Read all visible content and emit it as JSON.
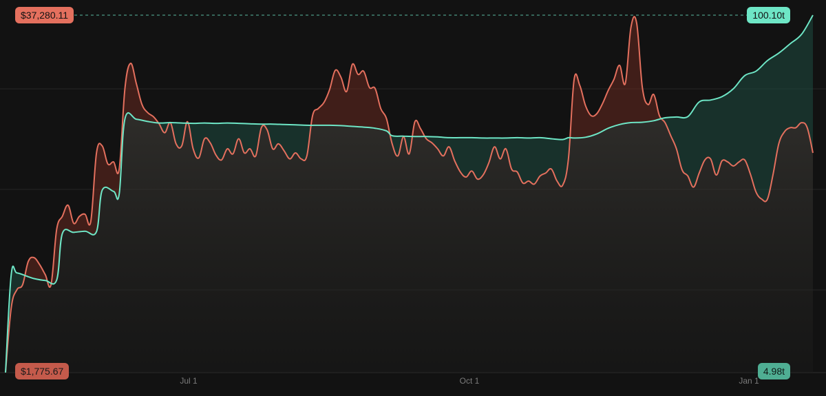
{
  "colors": {
    "background": "#121212",
    "price_line": "#e4705e",
    "supply_line": "#6ee6c6",
    "gridline": "#262626"
  },
  "labels": {
    "price_max": "$37,280.11",
    "price_min": "$1,775.67",
    "supply_max": "100.10t",
    "supply_min": "4.98t"
  },
  "x_ticks": [
    "Jul 1",
    "Oct 1",
    "Jan 1"
  ],
  "chart_data": {
    "type": "line",
    "title": "",
    "xlabel": "",
    "ylabel": "",
    "grid": true,
    "price_range": [
      1775.67,
      37280.11
    ],
    "supply_range": [
      4.98,
      100.1
    ],
    "series": [
      {
        "color": "#e4705e",
        "points": [
          [
            "2024-04-08",
            1776
          ],
          [
            "2024-04-10",
            8200
          ],
          [
            "2024-04-12",
            10000
          ],
          [
            "2024-04-14",
            10500
          ],
          [
            "2024-04-16",
            12800
          ],
          [
            "2024-04-18",
            13200
          ],
          [
            "2024-04-20",
            12500
          ],
          [
            "2024-04-22",
            11500
          ],
          [
            "2024-04-24",
            10500
          ],
          [
            "2024-04-26",
            16000
          ],
          [
            "2024-04-28",
            17300
          ],
          [
            "2024-04-30",
            18400
          ],
          [
            "2024-05-02",
            16600
          ],
          [
            "2024-05-04",
            17300
          ],
          [
            "2024-05-06",
            17500
          ],
          [
            "2024-05-08",
            16800
          ],
          [
            "2024-05-10",
            23600
          ],
          [
            "2024-05-12",
            24300
          ],
          [
            "2024-05-14",
            22500
          ],
          [
            "2024-05-16",
            22700
          ],
          [
            "2024-05-18",
            22000
          ],
          [
            "2024-05-20",
            30000
          ],
          [
            "2024-05-22",
            32500
          ],
          [
            "2024-05-24",
            30500
          ],
          [
            "2024-05-26",
            28400
          ],
          [
            "2024-05-28",
            27600
          ],
          [
            "2024-05-30",
            27200
          ],
          [
            "2024-06-01",
            26500
          ],
          [
            "2024-06-03",
            25600
          ],
          [
            "2024-06-05",
            26600
          ],
          [
            "2024-06-07",
            24500
          ],
          [
            "2024-06-09",
            24300
          ],
          [
            "2024-06-11",
            26700
          ],
          [
            "2024-06-13",
            24000
          ],
          [
            "2024-06-15",
            23100
          ],
          [
            "2024-06-17",
            25000
          ],
          [
            "2024-06-19",
            24600
          ],
          [
            "2024-06-21",
            23400
          ],
          [
            "2024-06-23",
            22900
          ],
          [
            "2024-06-25",
            24000
          ],
          [
            "2024-06-27",
            23500
          ],
          [
            "2024-06-29",
            25000
          ],
          [
            "2024-07-01",
            23600
          ],
          [
            "2024-07-03",
            24000
          ],
          [
            "2024-07-05",
            23300
          ],
          [
            "2024-07-07",
            26100
          ],
          [
            "2024-07-09",
            25900
          ],
          [
            "2024-07-11",
            24000
          ],
          [
            "2024-07-13",
            24500
          ],
          [
            "2024-07-15",
            23800
          ],
          [
            "2024-07-17",
            23000
          ],
          [
            "2024-07-19",
            23600
          ],
          [
            "2024-07-21",
            23000
          ],
          [
            "2024-07-23",
            23300
          ],
          [
            "2024-07-25",
            27300
          ],
          [
            "2024-07-27",
            28000
          ],
          [
            "2024-07-29",
            28600
          ],
          [
            "2024-07-31",
            29900
          ],
          [
            "2024-08-02",
            31800
          ],
          [
            "2024-08-04",
            31100
          ],
          [
            "2024-08-06",
            29700
          ],
          [
            "2024-08-08",
            32400
          ],
          [
            "2024-08-10",
            31400
          ],
          [
            "2024-08-12",
            31700
          ],
          [
            "2024-08-14",
            30100
          ],
          [
            "2024-08-16",
            30000
          ],
          [
            "2024-08-18",
            28000
          ],
          [
            "2024-08-20",
            27000
          ],
          [
            "2024-08-22",
            24500
          ],
          [
            "2024-08-24",
            23300
          ],
          [
            "2024-08-26",
            25200
          ],
          [
            "2024-08-28",
            23500
          ],
          [
            "2024-08-30",
            26700
          ],
          [
            "2024-09-01",
            26000
          ],
          [
            "2024-09-03",
            25000
          ],
          [
            "2024-09-05",
            24600
          ],
          [
            "2024-09-07",
            24000
          ],
          [
            "2024-09-09",
            23300
          ],
          [
            "2024-09-11",
            24200
          ],
          [
            "2024-09-13",
            22800
          ],
          [
            "2024-09-15",
            21700
          ],
          [
            "2024-09-17",
            21200
          ],
          [
            "2024-09-19",
            21800
          ],
          [
            "2024-09-21",
            21000
          ],
          [
            "2024-09-23",
            21400
          ],
          [
            "2024-09-25",
            22600
          ],
          [
            "2024-09-27",
            24200
          ],
          [
            "2024-09-29",
            23000
          ],
          [
            "2024-10-01",
            24000
          ],
          [
            "2024-10-03",
            22000
          ],
          [
            "2024-10-05",
            21700
          ],
          [
            "2024-10-07",
            20600
          ],
          [
            "2024-10-09",
            20800
          ],
          [
            "2024-10-11",
            20500
          ],
          [
            "2024-10-13",
            21300
          ],
          [
            "2024-10-15",
            21600
          ],
          [
            "2024-10-17",
            22000
          ],
          [
            "2024-10-19",
            20800
          ],
          [
            "2024-10-21",
            20400
          ],
          [
            "2024-10-23",
            23000
          ],
          [
            "2024-10-25",
            30900
          ],
          [
            "2024-10-27",
            30300
          ],
          [
            "2024-10-29",
            28300
          ],
          [
            "2024-10-31",
            27300
          ],
          [
            "2024-11-02",
            27500
          ],
          [
            "2024-11-04",
            28500
          ],
          [
            "2024-11-06",
            29800
          ],
          [
            "2024-11-08",
            30900
          ],
          [
            "2024-11-10",
            32300
          ],
          [
            "2024-11-12",
            30500
          ],
          [
            "2024-11-14",
            36100
          ],
          [
            "2024-11-16",
            36500
          ],
          [
            "2024-11-18",
            30100
          ],
          [
            "2024-11-20",
            28400
          ],
          [
            "2024-11-22",
            29400
          ],
          [
            "2024-11-24",
            27300
          ],
          [
            "2024-11-26",
            26600
          ],
          [
            "2024-11-28",
            25300
          ],
          [
            "2024-11-30",
            24000
          ],
          [
            "2024-12-02",
            21900
          ],
          [
            "2024-12-04",
            21300
          ],
          [
            "2024-12-06",
            20200
          ],
          [
            "2024-12-08",
            21600
          ],
          [
            "2024-12-10",
            22900
          ],
          [
            "2024-12-12",
            23000
          ],
          [
            "2024-12-14",
            21400
          ],
          [
            "2024-12-16",
            22800
          ],
          [
            "2024-12-18",
            22700
          ],
          [
            "2024-12-20",
            22300
          ],
          [
            "2024-12-22",
            22700
          ],
          [
            "2024-12-24",
            22900
          ],
          [
            "2024-12-26",
            21500
          ],
          [
            "2024-12-28",
            19700
          ],
          [
            "2024-12-30",
            19000
          ],
          [
            "2025-01-01",
            19000
          ],
          [
            "2025-01-03",
            21500
          ],
          [
            "2025-01-05",
            24500
          ],
          [
            "2025-01-07",
            25700
          ],
          [
            "2025-01-09",
            26100
          ],
          [
            "2025-01-11",
            26100
          ],
          [
            "2025-01-13",
            26600
          ],
          [
            "2025-01-15",
            26100
          ],
          [
            "2025-01-17",
            23600
          ]
        ]
      },
      {
        "color": "#6ee6c6",
        "points": [
          [
            "2024-04-08",
            4.98
          ],
          [
            "2024-04-10",
            31.0
          ],
          [
            "2024-04-12",
            31.5
          ],
          [
            "2024-04-16",
            30.5
          ],
          [
            "2024-04-18",
            30.0
          ],
          [
            "2024-04-22",
            29.5
          ],
          [
            "2024-04-26",
            29.6
          ],
          [
            "2024-04-28",
            42.0
          ],
          [
            "2024-05-02",
            42.3
          ],
          [
            "2024-05-06",
            42.6
          ],
          [
            "2024-05-10",
            42.5
          ],
          [
            "2024-05-12",
            53.5
          ],
          [
            "2024-05-16",
            53.2
          ],
          [
            "2024-05-18",
            52.5
          ],
          [
            "2024-05-20",
            72.5
          ],
          [
            "2024-05-24",
            72.4
          ],
          [
            "2024-05-28",
            71.8
          ],
          [
            "2024-06-01",
            71.4
          ],
          [
            "2024-06-05",
            71.5
          ],
          [
            "2024-06-09",
            71.4
          ],
          [
            "2024-06-13",
            71.3
          ],
          [
            "2024-06-17",
            71.4
          ],
          [
            "2024-06-21",
            71.3
          ],
          [
            "2024-06-25",
            71.4
          ],
          [
            "2024-06-29",
            71.3
          ],
          [
            "2024-07-03",
            71.2
          ],
          [
            "2024-07-07",
            71.1
          ],
          [
            "2024-07-11",
            71.1
          ],
          [
            "2024-07-15",
            71.0
          ],
          [
            "2024-07-19",
            70.9
          ],
          [
            "2024-07-23",
            70.8
          ],
          [
            "2024-07-27",
            70.8
          ],
          [
            "2024-07-31",
            70.8
          ],
          [
            "2024-08-04",
            70.7
          ],
          [
            "2024-08-08",
            70.5
          ],
          [
            "2024-08-12",
            70.3
          ],
          [
            "2024-08-16",
            70.0
          ],
          [
            "2024-08-20",
            69.3
          ],
          [
            "2024-08-22",
            68.0
          ],
          [
            "2024-08-26",
            67.9
          ],
          [
            "2024-08-30",
            67.8
          ],
          [
            "2024-09-03",
            67.8
          ],
          [
            "2024-09-07",
            67.7
          ],
          [
            "2024-09-11",
            67.5
          ],
          [
            "2024-09-15",
            67.5
          ],
          [
            "2024-09-19",
            67.5
          ],
          [
            "2024-09-23",
            67.4
          ],
          [
            "2024-09-27",
            67.4
          ],
          [
            "2024-10-01",
            67.4
          ],
          [
            "2024-10-05",
            67.5
          ],
          [
            "2024-10-09",
            67.4
          ],
          [
            "2024-10-13",
            67.5
          ],
          [
            "2024-10-17",
            67.2
          ],
          [
            "2024-10-21",
            67.0
          ],
          [
            "2024-10-23",
            67.5
          ],
          [
            "2024-10-25",
            67.4
          ],
          [
            "2024-10-29",
            67.6
          ],
          [
            "2024-11-02",
            68.5
          ],
          [
            "2024-11-06",
            70.0
          ],
          [
            "2024-11-10",
            71.0
          ],
          [
            "2024-11-14",
            71.5
          ],
          [
            "2024-11-18",
            71.6
          ],
          [
            "2024-11-22",
            72.0
          ],
          [
            "2024-11-26",
            72.8
          ],
          [
            "2024-11-30",
            73.0
          ],
          [
            "2024-12-04",
            73.1
          ],
          [
            "2024-12-08",
            77.0
          ],
          [
            "2024-12-12",
            77.5
          ],
          [
            "2024-12-16",
            78.4
          ],
          [
            "2024-12-20",
            80.5
          ],
          [
            "2024-12-24",
            84.0
          ],
          [
            "2024-12-28",
            85.2
          ],
          [
            "2025-01-01",
            88.0
          ],
          [
            "2025-01-05",
            90.0
          ],
          [
            "2025-01-09",
            92.5
          ],
          [
            "2025-01-13",
            95.0
          ],
          [
            "2025-01-17",
            100.1
          ]
        ]
      }
    ]
  }
}
